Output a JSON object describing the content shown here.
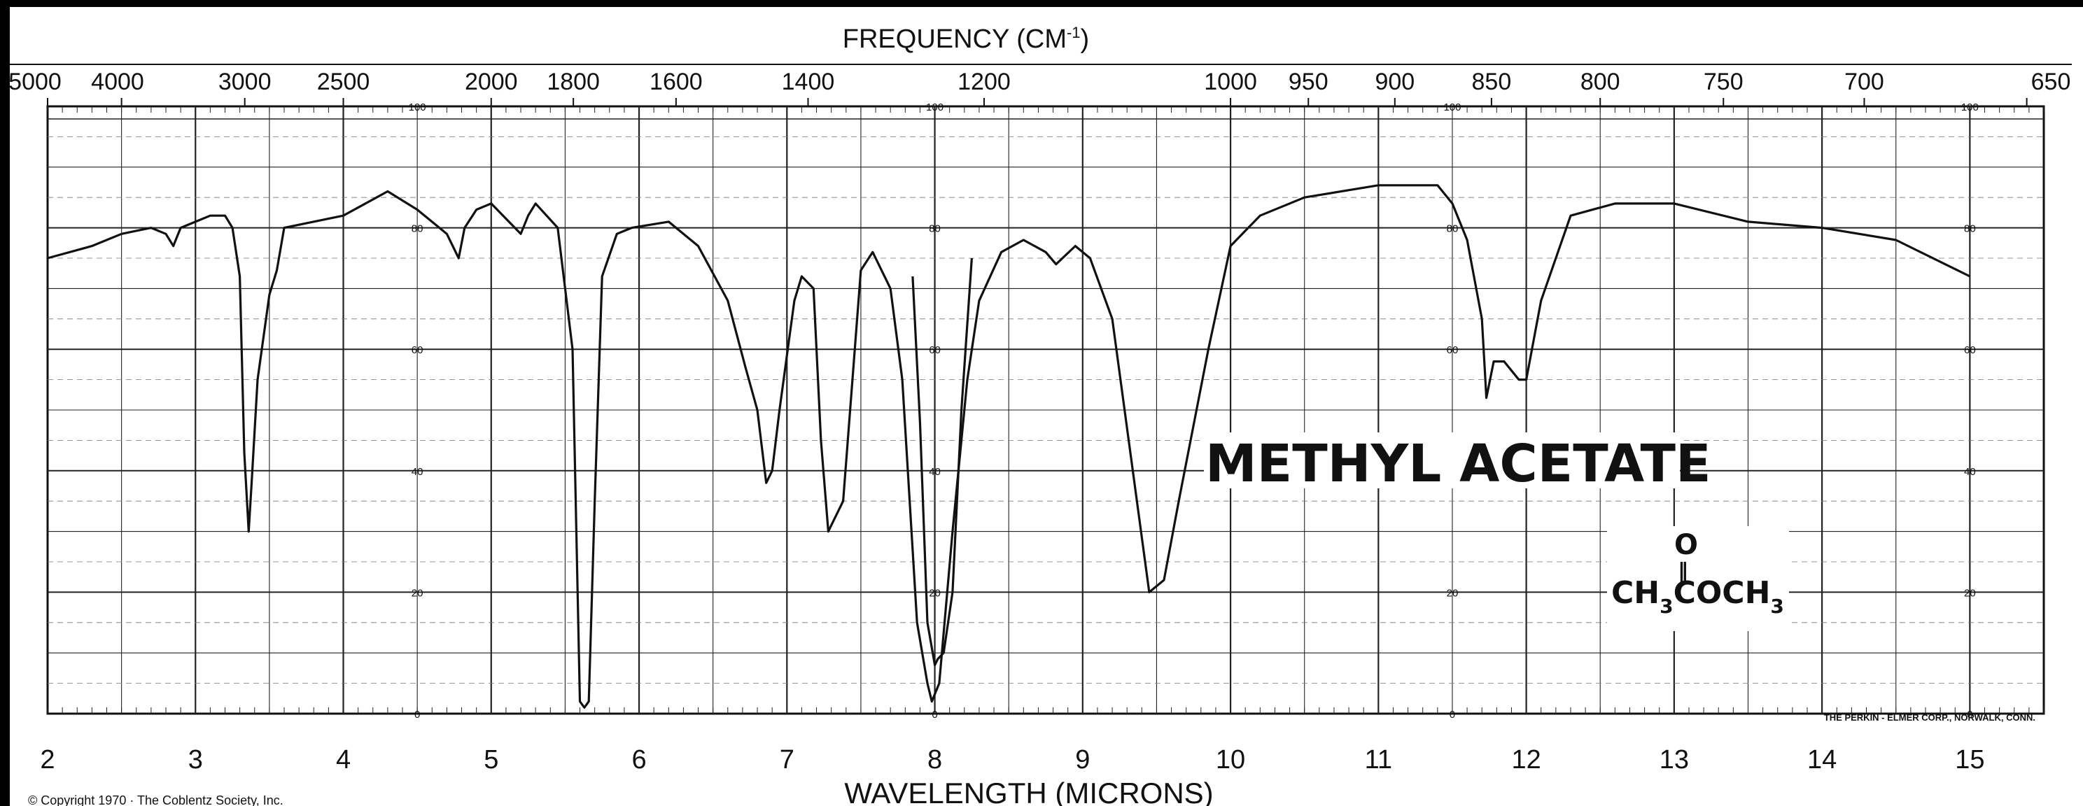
{
  "chart_data": {
    "type": "line",
    "title": "METHYL ACETATE",
    "formula": {
      "oxygen": "O",
      "double_bond": "‖",
      "left_group": "CH",
      "left_sub": "3",
      "middle": "COCH",
      "right_sub": "3"
    },
    "top_axis": {
      "label_main": "FREQUENCY (CM",
      "label_sup": "-1",
      "label_close": ")",
      "ticks": [
        "5000",
        "4000",
        "3000",
        "2500",
        "2000",
        "1800",
        "1600",
        "1400",
        "1200",
        "1000",
        "950",
        "900",
        "850",
        "800",
        "750",
        "700",
        "650"
      ]
    },
    "bottom_axis": {
      "label": "WAVELENGTH (MICRONS)",
      "ticks": [
        "2",
        "3",
        "4",
        "5",
        "6",
        "7",
        "8",
        "9",
        "10",
        "11",
        "12",
        "13",
        "14",
        "15"
      ],
      "range": [
        2,
        15.5
      ]
    },
    "y_axis": {
      "range": [
        0,
        100
      ],
      "ticks": [
        "100",
        "80",
        "60",
        "40",
        "20",
        "0"
      ]
    },
    "grid": true,
    "credit": "THE PERKIN - ELMER CORP., NORWALK, CONN.",
    "copyright": "© Copyright 1970 · The Coblentz Society, Inc.",
    "series": [
      {
        "x": [
          2.0,
          2.3,
          2.5,
          2.7,
          2.8,
          2.85,
          2.9,
          3.0,
          3.1,
          3.2,
          3.25,
          3.3,
          3.33,
          3.36,
          3.38,
          3.42,
          3.5,
          3.55,
          3.6,
          4.0,
          4.3,
          4.5,
          4.7,
          4.78,
          4.82,
          4.9,
          5.0,
          5.2,
          5.25,
          5.3,
          5.45,
          5.55,
          5.6,
          5.63,
          5.66,
          5.7,
          5.75,
          5.85,
          5.95,
          6.2,
          6.4,
          6.6,
          6.72,
          6.8,
          6.86,
          6.9,
          6.95,
          7.05,
          7.1,
          7.18,
          7.23,
          7.28,
          7.38,
          7.5,
          7.58,
          7.7,
          7.78,
          7.88,
          7.95,
          7.98,
          8.03,
          8.12,
          8.22,
          8.3,
          8.45,
          8.6,
          8.75,
          8.82,
          8.95,
          9.05,
          9.2,
          9.35,
          9.45,
          9.55,
          9.65,
          9.85,
          10.0,
          10.2,
          10.5,
          11.0,
          11.4,
          11.5,
          11.6,
          11.7,
          11.73,
          11.78,
          11.85,
          11.95,
          12.0,
          12.1,
          12.3,
          12.6,
          13.0,
          13.5,
          14.0,
          14.5,
          15.0
        ],
        "y": [
          75,
          77,
          79,
          80,
          79,
          77,
          80,
          81,
          82,
          82,
          80,
          72,
          43,
          30,
          38,
          55,
          69,
          73,
          80,
          82,
          86,
          83,
          79,
          75,
          80,
          83,
          84,
          79,
          82,
          84,
          80,
          60,
          2,
          1,
          2,
          35,
          72,
          79,
          80,
          81,
          77,
          68,
          57,
          50,
          38,
          40,
          50,
          68,
          72,
          70,
          45,
          30,
          35,
          73,
          76,
          70,
          55,
          15,
          5,
          2,
          5,
          30,
          55,
          68,
          76,
          78,
          76,
          74,
          77,
          75,
          65,
          38,
          20,
          22,
          35,
          60,
          77,
          82,
          85,
          87,
          87,
          84,
          78,
          65,
          52,
          58,
          58,
          55,
          55,
          68,
          82,
          84,
          84,
          81,
          80,
          78,
          72
        ]
      },
      {
        "x": [
          7.85,
          7.9,
          7.95,
          8.0,
          8.02,
          8.06,
          8.12,
          8.18,
          8.25
        ],
        "y": [
          72,
          48,
          15,
          8,
          9,
          10,
          20,
          50,
          75
        ]
      }
    ]
  }
}
